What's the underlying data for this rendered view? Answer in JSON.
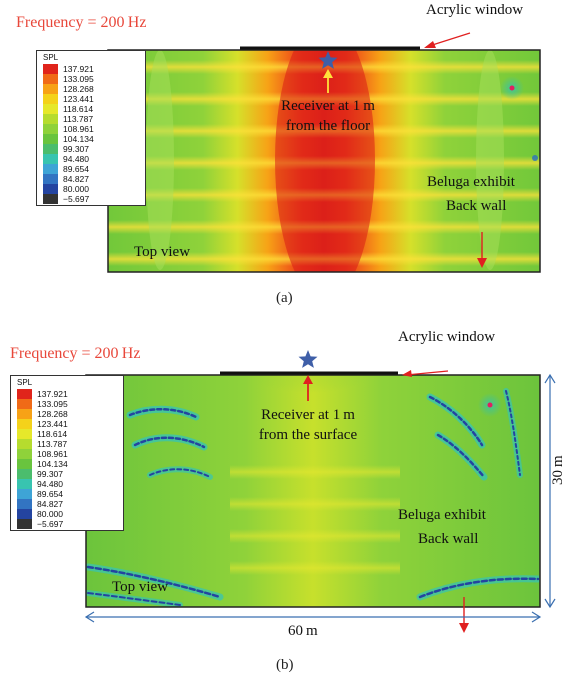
{
  "legend": {
    "title": "SPL",
    "values": [
      "137.921",
      "133.095",
      "128.268",
      "123.441",
      "118.614",
      "113.787",
      "108.961",
      "104.134",
      "99.307",
      "94.480",
      "89.654",
      "84.827",
      "80.000",
      "−5.697"
    ],
    "colors": [
      "#e0241b",
      "#f06a17",
      "#f7a216",
      "#f4d21a",
      "#e6e82a",
      "#b6dc2e",
      "#8fd23a",
      "#69c43e",
      "#4bbd6d",
      "#38c4b0",
      "#3ea4d6",
      "#3274c2",
      "#2444a0",
      "#333333"
    ]
  },
  "panel_a": {
    "frequency": "Frequency = 200 Hz",
    "acrylic": "Acrylic window",
    "receiver_line1": "Receiver at 1 m",
    "receiver_line2": "from the floor",
    "beluga": "Beluga exhibit",
    "backwall": "Back wall",
    "topview": "Top view",
    "caption": "(a)"
  },
  "panel_b": {
    "frequency": "Frequency = 200 Hz",
    "acrylic": "Acrylic window",
    "receiver_line1": "Receiver at 1 m",
    "receiver_line2": "from the surface",
    "beluga": "Beluga exhibit",
    "backwall": "Back wall",
    "topview": "Top view",
    "width": "60 m",
    "height": "30 m",
    "caption": "(b)"
  },
  "colors": {
    "hot": "#e0241b",
    "yellow": "#f4d21a",
    "green": "#7ccc3a",
    "cyan": "#38c4b0",
    "blue": "#2a4fb0",
    "annotation_red": "#e02020",
    "dimension_blue": "#3a6fb0",
    "star": "#3f5fa8",
    "frequency_text": "#e8473a"
  }
}
